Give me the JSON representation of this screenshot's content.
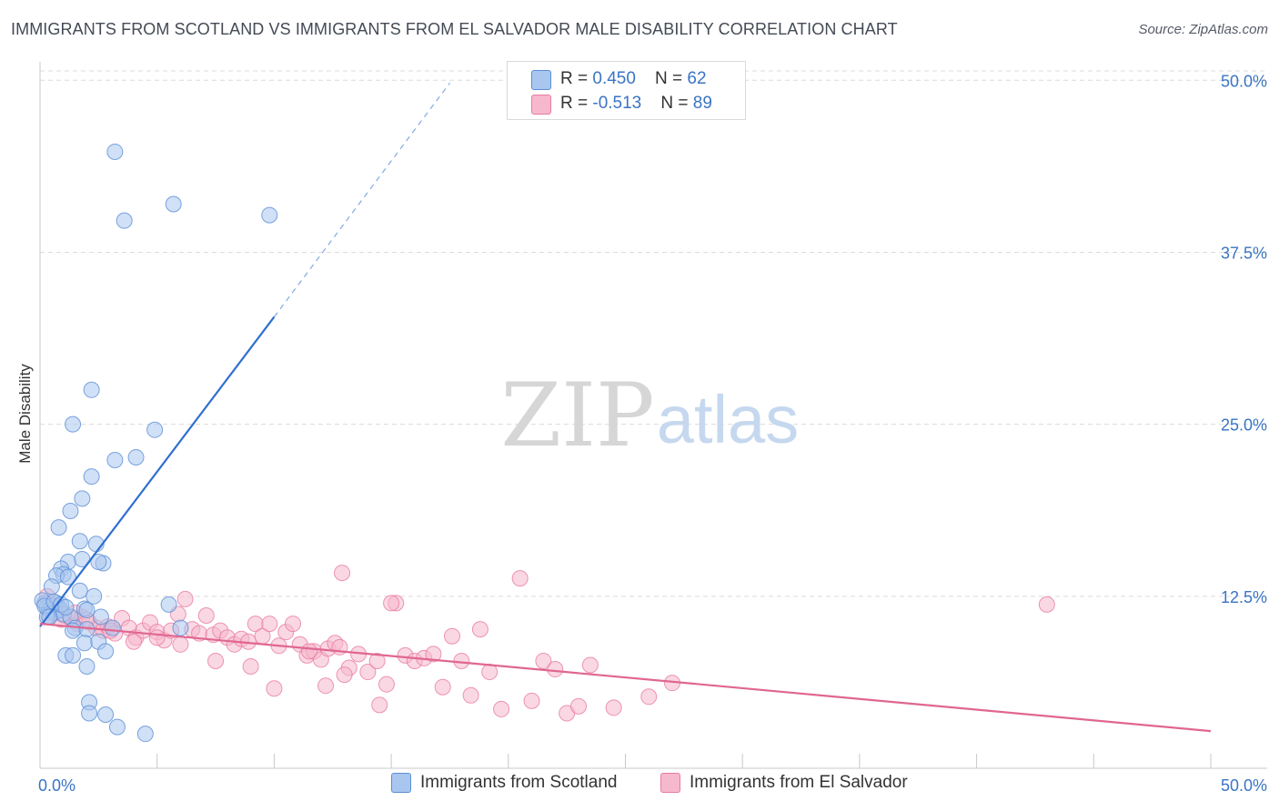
{
  "title": "IMMIGRANTS FROM SCOTLAND VS IMMIGRANTS FROM EL SALVADOR MALE DISABILITY CORRELATION CHART",
  "source": "Source: ZipAtlas.com",
  "watermark": {
    "zip": "ZIP",
    "atlas": "atlas"
  },
  "colors": {
    "scotland_fill": "#a9c6ee",
    "scotland_stroke": "#5b8fd6",
    "scotland_line": "#2f6fcf",
    "elsalvador_fill": "#f6b8cc",
    "elsalvador_stroke": "#e87ca0",
    "elsalvador_line": "#e06692",
    "tick_label": "#3a74c4",
    "grid": "#dcdcdc"
  },
  "legend": {
    "rows": [
      {
        "r_label": "R = ",
        "r_value": "0.450",
        "n_label": "N = ",
        "n_value": "62"
      },
      {
        "r_label": "R = ",
        "r_value": "-0.513",
        "n_label": "N = ",
        "n_value": "89"
      }
    ]
  },
  "bottom_legend": [
    "Immigrants from Scotland",
    "Immigrants from El Salvador"
  ],
  "chart_data": {
    "type": "scatter",
    "title": "IMMIGRANTS FROM SCOTLAND VS IMMIGRANTS FROM EL SALVADOR MALE DISABILITY CORRELATION CHART",
    "xlabel": "",
    "ylabel": "Male Disability",
    "xlim": [
      0,
      50
    ],
    "ylim": [
      0,
      52
    ],
    "x_tick_labels": [
      {
        "value": 0,
        "label": "0.0%"
      },
      {
        "value": 50,
        "label": "50.0%"
      }
    ],
    "x_minor_ticks": [
      0,
      5,
      10,
      15,
      20,
      25,
      30,
      35,
      40,
      45,
      50
    ],
    "y_ticks": [
      {
        "value": 12.5,
        "label": "12.5%"
      },
      {
        "value": 25.0,
        "label": "25.0%"
      },
      {
        "value": 37.5,
        "label": "37.5%"
      },
      {
        "value": 50.0,
        "label": "50.0%"
      }
    ],
    "grid": true,
    "series": [
      {
        "name": "Immigrants from Scotland",
        "points": [
          [
            3.2,
            44.8
          ],
          [
            5.7,
            41.0
          ],
          [
            3.6,
            39.8
          ],
          [
            9.8,
            40.2
          ],
          [
            2.2,
            27.5
          ],
          [
            1.4,
            25.0
          ],
          [
            4.9,
            24.6
          ],
          [
            3.2,
            22.4
          ],
          [
            4.1,
            22.6
          ],
          [
            2.2,
            21.2
          ],
          [
            1.8,
            19.6
          ],
          [
            1.3,
            18.7
          ],
          [
            0.8,
            17.5
          ],
          [
            1.7,
            16.5
          ],
          [
            2.4,
            16.3
          ],
          [
            1.2,
            15.0
          ],
          [
            1.8,
            15.2
          ],
          [
            2.7,
            14.9
          ],
          [
            2.5,
            15.0
          ],
          [
            0.9,
            14.5
          ],
          [
            1.0,
            14.1
          ],
          [
            0.7,
            14.0
          ],
          [
            1.2,
            13.9
          ],
          [
            0.5,
            13.2
          ],
          [
            1.7,
            12.9
          ],
          [
            2.3,
            12.5
          ],
          [
            0.2,
            12.0
          ],
          [
            0.3,
            11.7
          ],
          [
            0.5,
            11.8
          ],
          [
            0.7,
            12.0
          ],
          [
            0.4,
            11.5
          ],
          [
            0.6,
            11.3
          ],
          [
            0.9,
            11.5
          ],
          [
            1.0,
            11.2
          ],
          [
            1.3,
            11.0
          ],
          [
            1.9,
            11.6
          ],
          [
            2.0,
            11.5
          ],
          [
            2.6,
            11.0
          ],
          [
            5.5,
            11.9
          ],
          [
            0.3,
            11.0
          ],
          [
            1.5,
            10.2
          ],
          [
            1.4,
            10.0
          ],
          [
            2.0,
            10.1
          ],
          [
            3.1,
            10.2
          ],
          [
            6.0,
            10.2
          ],
          [
            1.9,
            9.1
          ],
          [
            2.5,
            9.2
          ],
          [
            1.1,
            8.2
          ],
          [
            1.4,
            8.2
          ],
          [
            2.8,
            8.5
          ],
          [
            2.0,
            7.4
          ],
          [
            2.1,
            4.8
          ],
          [
            2.1,
            4.0
          ],
          [
            2.8,
            3.9
          ],
          [
            3.3,
            3.0
          ],
          [
            4.5,
            2.5
          ],
          [
            0.1,
            12.2
          ],
          [
            0.2,
            11.8
          ],
          [
            0.4,
            11.0
          ],
          [
            0.6,
            12.1
          ],
          [
            0.9,
            11.9
          ],
          [
            1.1,
            11.7
          ]
        ],
        "trend": {
          "solid": [
            [
              0.0,
              10.3
            ],
            [
              10.0,
              32.8
            ]
          ],
          "dashed": [
            [
              10.0,
              32.8
            ],
            [
              17.5,
              49.8
            ]
          ]
        }
      },
      {
        "name": "Immigrants from El Salvador",
        "points": [
          [
            0.3,
            12.5
          ],
          [
            0.6,
            11.8
          ],
          [
            0.8,
            11.6
          ],
          [
            1.0,
            11.1
          ],
          [
            0.4,
            11.0
          ],
          [
            0.9,
            10.8
          ],
          [
            1.3,
            10.9
          ],
          [
            1.6,
            10.5
          ],
          [
            1.8,
            11.0
          ],
          [
            2.1,
            10.6
          ],
          [
            2.4,
            10.2
          ],
          [
            2.7,
            10.0
          ],
          [
            2.9,
            10.3
          ],
          [
            3.2,
            9.8
          ],
          [
            3.5,
            10.9
          ],
          [
            3.8,
            10.2
          ],
          [
            4.1,
            9.5
          ],
          [
            4.4,
            10.0
          ],
          [
            4.7,
            10.6
          ],
          [
            5.0,
            9.9
          ],
          [
            5.3,
            9.3
          ],
          [
            5.6,
            10.0
          ],
          [
            5.9,
            11.2
          ],
          [
            6.2,
            12.3
          ],
          [
            6.5,
            10.1
          ],
          [
            6.8,
            9.8
          ],
          [
            7.1,
            11.1
          ],
          [
            7.4,
            9.7
          ],
          [
            7.7,
            10.0
          ],
          [
            8.0,
            9.5
          ],
          [
            8.3,
            9.0
          ],
          [
            8.6,
            9.4
          ],
          [
            8.9,
            9.2
          ],
          [
            9.2,
            10.5
          ],
          [
            9.5,
            9.6
          ],
          [
            9.8,
            10.5
          ],
          [
            10.2,
            8.9
          ],
          [
            10.5,
            9.9
          ],
          [
            10.8,
            10.5
          ],
          [
            11.1,
            9.0
          ],
          [
            11.4,
            8.2
          ],
          [
            11.7,
            8.5
          ],
          [
            12.0,
            7.9
          ],
          [
            12.3,
            8.7
          ],
          [
            12.6,
            9.1
          ],
          [
            12.8,
            8.8
          ],
          [
            12.9,
            14.2
          ],
          [
            13.2,
            7.3
          ],
          [
            13.6,
            8.3
          ],
          [
            14.0,
            7.0
          ],
          [
            14.4,
            7.8
          ],
          [
            14.8,
            6.1
          ],
          [
            15.2,
            12.0
          ],
          [
            15.6,
            8.2
          ],
          [
            16.0,
            7.8
          ],
          [
            16.4,
            8.0
          ],
          [
            16.8,
            8.3
          ],
          [
            17.2,
            5.9
          ],
          [
            17.6,
            9.6
          ],
          [
            18.0,
            7.8
          ],
          [
            18.4,
            5.3
          ],
          [
            18.8,
            10.1
          ],
          [
            19.2,
            7.0
          ],
          [
            19.7,
            4.3
          ],
          [
            20.5,
            13.8
          ],
          [
            21.0,
            4.9
          ],
          [
            21.5,
            7.8
          ],
          [
            22.0,
            7.2
          ],
          [
            22.5,
            4.0
          ],
          [
            23.0,
            4.5
          ],
          [
            23.5,
            7.5
          ],
          [
            24.5,
            4.4
          ],
          [
            15.0,
            12.0
          ],
          [
            11.5,
            8.5
          ],
          [
            12.2,
            6.0
          ],
          [
            9.0,
            7.4
          ],
          [
            7.5,
            7.8
          ],
          [
            6.0,
            9.0
          ],
          [
            5.0,
            9.5
          ],
          [
            4.0,
            9.2
          ],
          [
            3.0,
            10.0
          ],
          [
            2.0,
            10.8
          ],
          [
            1.5,
            11.3
          ],
          [
            10.0,
            5.8
          ],
          [
            14.5,
            4.6
          ],
          [
            26.0,
            5.2
          ],
          [
            27.0,
            6.2
          ],
          [
            43.0,
            11.9
          ],
          [
            13.0,
            6.8
          ]
        ],
        "trend": {
          "solid": [
            [
              0.0,
              10.5
            ],
            [
              50.0,
              2.7
            ]
          ]
        }
      }
    ]
  }
}
